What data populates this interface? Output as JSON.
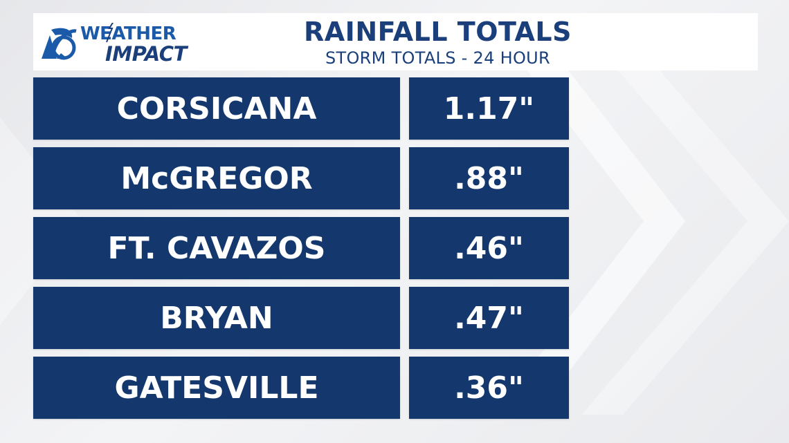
{
  "logo": {
    "brand_line1": "WEATHER",
    "brand_line2": "IMPACT",
    "station_icon": "channel-6-peacock-icon"
  },
  "header": {
    "title": "RAINFALL TOTALS",
    "subtitle": "STORM TOTALS - 24 HOUR"
  },
  "rainfall": [
    {
      "city": "CORSICANA",
      "amount": "1.17\""
    },
    {
      "city": "McGREGOR",
      "amount": ".88\""
    },
    {
      "city": "FT. CAVAZOS",
      "amount": ".46\""
    },
    {
      "city": "BRYAN",
      "amount": ".47\""
    },
    {
      "city": "GATESVILLE",
      "amount": ".36\""
    }
  ],
  "colors": {
    "cell_background": "#14386d",
    "header_text": "#1a3f7a",
    "background": "#eceef1"
  }
}
